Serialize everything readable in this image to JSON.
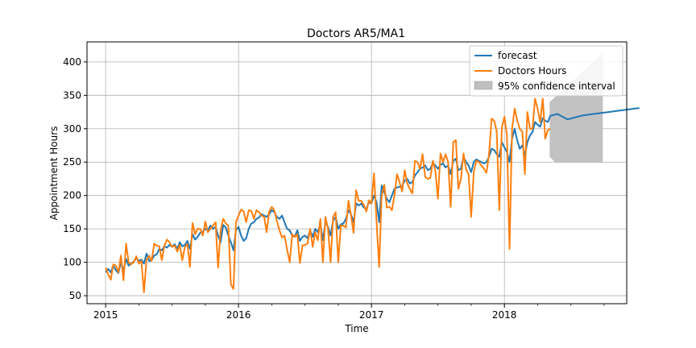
{
  "chart_data": {
    "type": "line",
    "title": "Doctors AR5/MA1",
    "xlabel": "Time",
    "ylabel": "Appointment Hours",
    "x_unit": "year",
    "xlim": [
      2014.86,
      2018.92
    ],
    "ylim": [
      38,
      430
    ],
    "yticks": [
      50,
      100,
      150,
      200,
      250,
      300,
      350,
      400
    ],
    "xticks": [
      2015,
      2016,
      2017,
      2018
    ],
    "xtick_labels": [
      "2015",
      "2016",
      "2017",
      "2018"
    ],
    "grid": true,
    "legend_position": "top-right",
    "legend": [
      {
        "key": "forecast",
        "label": "forecast",
        "color": "#1f77b4",
        "kind": "line"
      },
      {
        "key": "observed",
        "label": "Doctors Hours",
        "color": "#ff7f0e",
        "kind": "line"
      },
      {
        "key": "ci",
        "label": "95% confidence interval",
        "color": "#bfbfbf",
        "kind": "patch"
      }
    ],
    "series": [
      {
        "key": "observed",
        "name": "Doctors Hours",
        "color": "#ff7f0e",
        "x_start": 2015.0,
        "x_step": 0.01923,
        "values": [
          92,
          82,
          74,
          97,
          95,
          85,
          110,
          73,
          128,
          100,
          97,
          100,
          109,
          98,
          102,
          55,
          104,
          110,
          102,
          128,
          125,
          124,
          103,
          125,
          134,
          130,
          123,
          125,
          116,
          126,
          103,
          123,
          127,
          93,
          159,
          142,
          150,
          150,
          140,
          161,
          145,
          150,
          155,
          160,
          92,
          148,
          165,
          158,
          155,
          67,
          60,
          160,
          170,
          179,
          176,
          160,
          178,
          177,
          165,
          178,
          175,
          170,
          168,
          145,
          176,
          183,
          178,
          162,
          148,
          137,
          140,
          119,
          100,
          142,
          138,
          142,
          99,
          125,
          126,
          128,
          150,
          123,
          145,
          133,
          165,
          100,
          168,
          150,
          100,
          168,
          175,
          100,
          155,
          155,
          152,
          192,
          170,
          144,
          208,
          192,
          192,
          186,
          176,
          193,
          188,
          233,
          160,
          93,
          200,
          216,
          182,
          183,
          178,
          201,
          232,
          220,
          206,
          238,
          218,
          210,
          203,
          252,
          250,
          240,
          262,
          228,
          225,
          226,
          252,
          237,
          195,
          263,
          250,
          262,
          250,
          183,
          280,
          283,
          210,
          225,
          263,
          239,
          232,
          168,
          235,
          252,
          250,
          245,
          240,
          234,
          262,
          315,
          312,
          296,
          178,
          302,
          318,
          290,
          120,
          300,
          330,
          313,
          300,
          296,
          232,
          325,
          300,
          300,
          345,
          330,
          310,
          345,
          285,
          298,
          300
        ],
        "highlight_values": false
      },
      {
        "key": "forecast",
        "name": "forecast",
        "color": "#1f77b4",
        "x_start": 2015.0,
        "x_step": 0.01923,
        "values": [
          85,
          90,
          85,
          95,
          88,
          84,
          100,
          88,
          105,
          95,
          98,
          101,
          106,
          102,
          104,
          98,
          113,
          102,
          103,
          110,
          112,
          120,
          118,
          124,
          122,
          126,
          123,
          127,
          120,
          130,
          124,
          126,
          132,
          120,
          142,
          134,
          138,
          144,
          146,
          150,
          148,
          155,
          150,
          153,
          140,
          130,
          156,
          152,
          140,
          130,
          118,
          148,
          153,
          140,
          132,
          136,
          150,
          158,
          160,
          165,
          167,
          172,
          170,
          168,
          172,
          178,
          175,
          168,
          165,
          170,
          160,
          150,
          148,
          140,
          138,
          148,
          132,
          138,
          140,
          136,
          148,
          138,
          150,
          145,
          157,
          133,
          160,
          153,
          140,
          162,
          168,
          150,
          157,
          158,
          165,
          178,
          172,
          160,
          188,
          185,
          188,
          182,
          180,
          190,
          188,
          200,
          190,
          160,
          215,
          205,
          195,
          190,
          200,
          210,
          212,
          213,
          214,
          222,
          225,
          218,
          220,
          230,
          235,
          240,
          242,
          245,
          238,
          240,
          248,
          245,
          240,
          246,
          248,
          242,
          245,
          232,
          252,
          255,
          238,
          240,
          258,
          250,
          245,
          235,
          250,
          254,
          252,
          250,
          248,
          250,
          258,
          270,
          268,
          262,
          258,
          280,
          272,
          265,
          250,
          285,
          300,
          283,
          270,
          275,
          260,
          280,
          290,
          295,
          310,
          306,
          303,
          316,
          312,
          310,
          320
        ],
        "forecast_extension": {
          "x_start": 2018.36,
          "x_step": 0.0385,
          "values": [
            320,
            322,
            318,
            314,
            316,
            318,
            320,
            321,
            322,
            323,
            324,
            325,
            326,
            327,
            328,
            329,
            330,
            331
          ]
        }
      }
    ],
    "confidence_interval": {
      "x_start": 2018.34,
      "x_end": 2018.74,
      "lower_start": 258,
      "lower_flat": 249,
      "upper_start": 340,
      "upper_end": 413
    }
  }
}
